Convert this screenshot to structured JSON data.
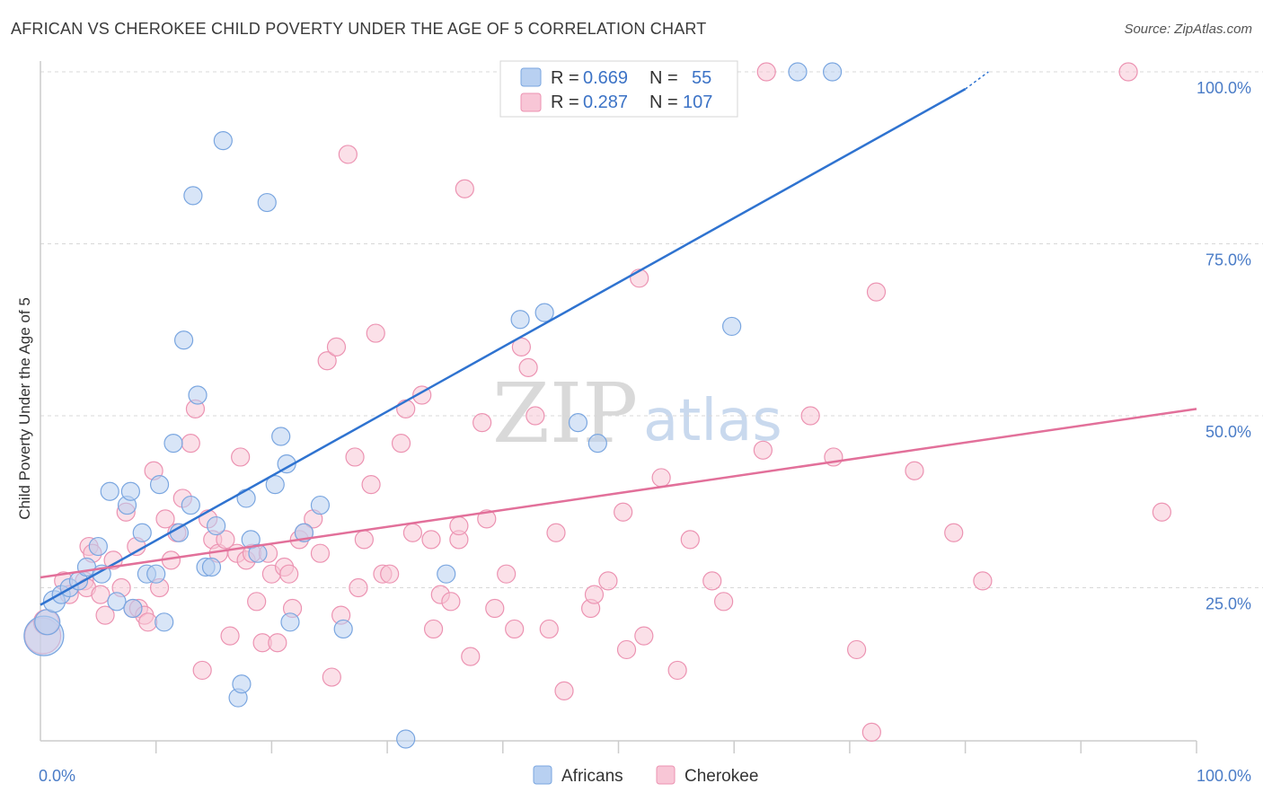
{
  "title": "AFRICAN VS CHEROKEE CHILD POVERTY UNDER THE AGE OF 5 CORRELATION CHART",
  "source": "Source: ZipAtlas.com",
  "watermark": {
    "zip": "ZIP",
    "atlas": "atlas"
  },
  "colors": {
    "africans_fill": "#b8d0f1",
    "africans_stroke": "#7aa6e0",
    "africans_line": "#2f73d0",
    "cherokee_fill": "#f8c6d6",
    "cherokee_stroke": "#ec93b2",
    "cherokee_line": "#e2709a",
    "axis_label": "#4a7cc7",
    "grid": "#d8d8d8"
  },
  "legend": {
    "r_label": "R =",
    "n_label": "N =",
    "africans": {
      "r": "0.669",
      "n": "55"
    },
    "cherokee": {
      "r": "0.287",
      "n": "107"
    }
  },
  "bottom_legend": {
    "africans": "Africans",
    "cherokee": "Cherokee"
  },
  "chart_data": {
    "type": "scatter",
    "title": "AFRICAN VS CHEROKEE CHILD POVERTY UNDER THE AGE OF 5 CORRELATION CHART",
    "xlabel": "",
    "ylabel": "Child Poverty Under the Age of 5",
    "xlim": [
      0,
      100
    ],
    "ylim": [
      0,
      102
    ],
    "x_tick_labels": [
      "0.0%",
      "100.0%"
    ],
    "y_tick_labels": [
      "25.0%",
      "50.0%",
      "75.0%",
      "100.0%"
    ],
    "y_ticks": [
      25,
      50,
      75,
      100
    ],
    "grid": true,
    "legend_position": "top-center",
    "series": [
      {
        "name": "Africans",
        "r": 0.669,
        "n": 55,
        "trend": {
          "x": [
            0,
            80
          ],
          "y": [
            22.5,
            97.5
          ],
          "dashed_to": [
            82,
            100
          ]
        },
        "points": [
          [
            0.3,
            18,
            22
          ],
          [
            0.6,
            20,
            14
          ],
          [
            1.2,
            23,
            12
          ],
          [
            1.8,
            24,
            10
          ],
          [
            2.5,
            25,
            10
          ],
          [
            3.3,
            26,
            10
          ],
          [
            4.0,
            28,
            10
          ],
          [
            5.0,
            31,
            10
          ],
          [
            5.3,
            27,
            10
          ],
          [
            6.0,
            39,
            10
          ],
          [
            6.6,
            23,
            10
          ],
          [
            7.5,
            37,
            10
          ],
          [
            7.8,
            39,
            10
          ],
          [
            8.0,
            22,
            10
          ],
          [
            8.8,
            33,
            10
          ],
          [
            9.2,
            27,
            10
          ],
          [
            10.0,
            27,
            10
          ],
          [
            10.3,
            40,
            10
          ],
          [
            10.7,
            20,
            10
          ],
          [
            11.5,
            46,
            10
          ],
          [
            12.0,
            33,
            10
          ],
          [
            12.4,
            61,
            10
          ],
          [
            13.0,
            37,
            10
          ],
          [
            13.2,
            82,
            10
          ],
          [
            13.6,
            53,
            10
          ],
          [
            14.3,
            28,
            10
          ],
          [
            14.8,
            28,
            10
          ],
          [
            15.2,
            34,
            10
          ],
          [
            15.8,
            90,
            10
          ],
          [
            17.1,
            9,
            10
          ],
          [
            17.4,
            11,
            10
          ],
          [
            17.8,
            38,
            10
          ],
          [
            18.2,
            32,
            10
          ],
          [
            18.8,
            30,
            10
          ],
          [
            19.6,
            81,
            10
          ],
          [
            20.3,
            40,
            10
          ],
          [
            20.8,
            47,
            10
          ],
          [
            21.3,
            43,
            10
          ],
          [
            21.6,
            20,
            10
          ],
          [
            22.8,
            33,
            10
          ],
          [
            24.2,
            37,
            10
          ],
          [
            26.2,
            19,
            10
          ],
          [
            31.6,
            3,
            10
          ],
          [
            35.1,
            27,
            10
          ],
          [
            40.6,
            100,
            10
          ],
          [
            40.9,
            100,
            10
          ],
          [
            41.6,
            100,
            10
          ],
          [
            42.1,
            100,
            10
          ],
          [
            43.6,
            65,
            10
          ],
          [
            41.5,
            64,
            10
          ],
          [
            46.5,
            49,
            10
          ],
          [
            48.2,
            46,
            10
          ],
          [
            59.8,
            63,
            10
          ],
          [
            65.5,
            100,
            10
          ],
          [
            68.5,
            100,
            10
          ]
        ]
      },
      {
        "name": "Cherokee",
        "r": 0.287,
        "n": 107,
        "trend": {
          "x": [
            0,
            100
          ],
          "y": [
            26.5,
            51
          ]
        },
        "points": [
          [
            0.2,
            18,
            20
          ],
          [
            0.5,
            20,
            14
          ],
          [
            2.0,
            26,
            10
          ],
          [
            2.5,
            24,
            10
          ],
          [
            3.8,
            26,
            10
          ],
          [
            4.0,
            25,
            10
          ],
          [
            4.2,
            31,
            10
          ],
          [
            4.5,
            30,
            10
          ],
          [
            5.2,
            24,
            10
          ],
          [
            5.6,
            21,
            10
          ],
          [
            6.3,
            29,
            10
          ],
          [
            7.0,
            25,
            10
          ],
          [
            7.4,
            36,
            10
          ],
          [
            8.0,
            22,
            10
          ],
          [
            8.3,
            31,
            10
          ],
          [
            8.5,
            22,
            10
          ],
          [
            9.0,
            21,
            10
          ],
          [
            9.3,
            20,
            10
          ],
          [
            9.8,
            42,
            10
          ],
          [
            10.3,
            25,
            10
          ],
          [
            10.8,
            35,
            10
          ],
          [
            11.3,
            29,
            10
          ],
          [
            11.8,
            33,
            10
          ],
          [
            12.3,
            38,
            10
          ],
          [
            13.0,
            46,
            10
          ],
          [
            13.4,
            51,
            10
          ],
          [
            14.0,
            13,
            10
          ],
          [
            14.5,
            35,
            10
          ],
          [
            14.9,
            32,
            10
          ],
          [
            15.4,
            30,
            10
          ],
          [
            16.0,
            32,
            10
          ],
          [
            16.4,
            18,
            10
          ],
          [
            17.0,
            30,
            10
          ],
          [
            17.3,
            44,
            10
          ],
          [
            17.8,
            29,
            10
          ],
          [
            18.3,
            30,
            10
          ],
          [
            18.7,
            23,
            10
          ],
          [
            19.2,
            17,
            10
          ],
          [
            19.7,
            30,
            10
          ],
          [
            20.0,
            27,
            10
          ],
          [
            20.5,
            17,
            10
          ],
          [
            21.1,
            28,
            10
          ],
          [
            21.5,
            27,
            10
          ],
          [
            21.8,
            22,
            10
          ],
          [
            22.4,
            32,
            10
          ],
          [
            22.8,
            33,
            10
          ],
          [
            23.6,
            35,
            10
          ],
          [
            24.2,
            30,
            10
          ],
          [
            24.8,
            58,
            10
          ],
          [
            25.2,
            12,
            10
          ],
          [
            25.6,
            60,
            10
          ],
          [
            26.0,
            21,
            10
          ],
          [
            26.6,
            88,
            10
          ],
          [
            27.2,
            44,
            10
          ],
          [
            27.5,
            25,
            10
          ],
          [
            28.0,
            32,
            10
          ],
          [
            28.6,
            40,
            10
          ],
          [
            29.0,
            62,
            10
          ],
          [
            29.6,
            27,
            10
          ],
          [
            30.2,
            27,
            10
          ],
          [
            31.2,
            46,
            10
          ],
          [
            31.6,
            51,
            10
          ],
          [
            32.2,
            33,
            10
          ],
          [
            33.0,
            53,
            10
          ],
          [
            33.8,
            32,
            10
          ],
          [
            34.0,
            19,
            10
          ],
          [
            34.6,
            24,
            10
          ],
          [
            35.5,
            23,
            10
          ],
          [
            36.2,
            32,
            10
          ],
          [
            36.7,
            83,
            10
          ],
          [
            37.2,
            15,
            10
          ],
          [
            38.2,
            49,
            10
          ],
          [
            38.6,
            35,
            10
          ],
          [
            39.3,
            22,
            10
          ],
          [
            40.3,
            27,
            10
          ],
          [
            41.0,
            19,
            10
          ],
          [
            41.6,
            60,
            10
          ],
          [
            42.2,
            57,
            10
          ],
          [
            42.8,
            50,
            10
          ],
          [
            44.0,
            19,
            10
          ],
          [
            44.6,
            33,
            10
          ],
          [
            45.3,
            10,
            10
          ],
          [
            47.6,
            22,
            10
          ],
          [
            47.9,
            24,
            10
          ],
          [
            49.1,
            26,
            10
          ],
          [
            50.4,
            36,
            10
          ],
          [
            50.7,
            16,
            10
          ],
          [
            51.8,
            70,
            10
          ],
          [
            52.2,
            18,
            10
          ],
          [
            53.7,
            41,
            10
          ],
          [
            55.1,
            13,
            10
          ],
          [
            56.2,
            32,
            10
          ],
          [
            58.1,
            26,
            10
          ],
          [
            59.1,
            23,
            10
          ],
          [
            62.5,
            45,
            10
          ],
          [
            62.8,
            100,
            10
          ],
          [
            66.6,
            50,
            10
          ],
          [
            68.6,
            44,
            10
          ],
          [
            70.6,
            16,
            10
          ],
          [
            71.9,
            4,
            10
          ],
          [
            72.3,
            68,
            10
          ],
          [
            75.6,
            42,
            10
          ],
          [
            79.0,
            33,
            10
          ],
          [
            81.5,
            26,
            10
          ],
          [
            94.1,
            100,
            10
          ],
          [
            97.0,
            36,
            10
          ],
          [
            36.2,
            34,
            10
          ]
        ]
      }
    ]
  }
}
